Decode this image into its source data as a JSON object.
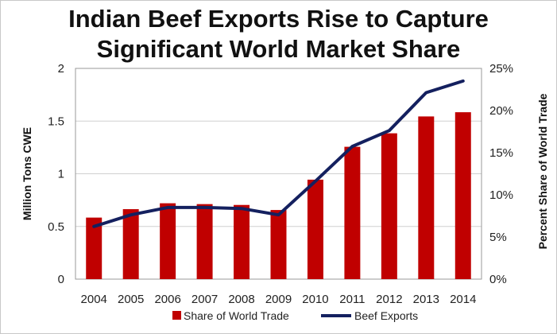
{
  "chart_data": {
    "type": "bar",
    "title_line1": "Indian Beef Exports Rise to Capture",
    "title_line2": "Significant World Market Share",
    "categories": [
      "2004",
      "2005",
      "2006",
      "2007",
      "2008",
      "2009",
      "2010",
      "2011",
      "2012",
      "2013",
      "2014"
    ],
    "series": [
      {
        "name": "Share of World Trade",
        "type": "bar",
        "axis": "right",
        "unit": "%",
        "values": [
          7.3,
          8.3,
          9.0,
          8.9,
          8.8,
          8.2,
          11.8,
          15.7,
          17.3,
          19.3,
          19.8
        ]
      },
      {
        "name": "Beef Exports",
        "type": "line",
        "axis": "left",
        "unit": "Million Tons CWE",
        "values": [
          0.5,
          0.61,
          0.68,
          0.68,
          0.67,
          0.61,
          0.93,
          1.26,
          1.41,
          1.77,
          1.88
        ]
      }
    ],
    "ylabel": "Million Tons CWE",
    "ylim": [
      0,
      2
    ],
    "yticks": [
      "0",
      "0.5",
      "1",
      "1.5",
      "2"
    ],
    "y2label": "Percent Share of World Trade",
    "y2lim": [
      0,
      25
    ],
    "y2ticks": [
      "0%",
      "5%",
      "10%",
      "15%",
      "20%",
      "25%"
    ],
    "grid": true,
    "legend_position": "bottom"
  },
  "colors": {
    "bar": "#c00000",
    "line": "#14205f",
    "grid": "#d0d0d0"
  }
}
